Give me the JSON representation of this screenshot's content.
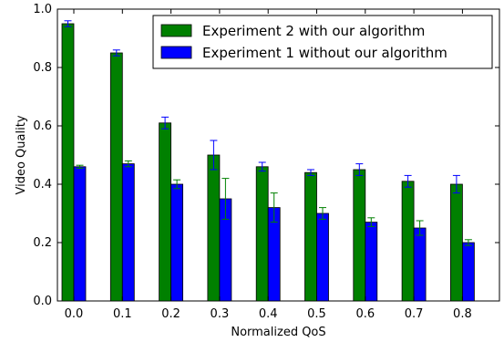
{
  "chart_data": {
    "type": "bar",
    "xlabel": "Normalized QoS",
    "ylabel": "Video Quality",
    "ylim": [
      0,
      1.0
    ],
    "yticks": [
      "0.0",
      "0.2",
      "0.4",
      "0.6",
      "0.8",
      "1.0"
    ],
    "categories": [
      "0.0",
      "0.1",
      "0.2",
      "0.3",
      "0.4",
      "0.5",
      "0.6",
      "0.7",
      "0.8"
    ],
    "grid": false,
    "legend_position": "top-right",
    "series": [
      {
        "name": "Experiment 2 with our algorithm",
        "color": "#008000",
        "error_color": "#0000ff",
        "values": [
          0.95,
          0.85,
          0.61,
          0.5,
          0.46,
          0.44,
          0.45,
          0.41,
          0.4
        ],
        "errors": [
          0.01,
          0.01,
          0.02,
          0.05,
          0.015,
          0.01,
          0.02,
          0.02,
          0.03
        ]
      },
      {
        "name": "Experiment 1 without our algorithm",
        "color": "#0000ff",
        "error_color": "#008000",
        "values": [
          0.46,
          0.47,
          0.4,
          0.35,
          0.32,
          0.3,
          0.27,
          0.25,
          0.2
        ],
        "errors": [
          0.005,
          0.01,
          0.015,
          0.07,
          0.05,
          0.02,
          0.015,
          0.025,
          0.01
        ]
      }
    ]
  }
}
